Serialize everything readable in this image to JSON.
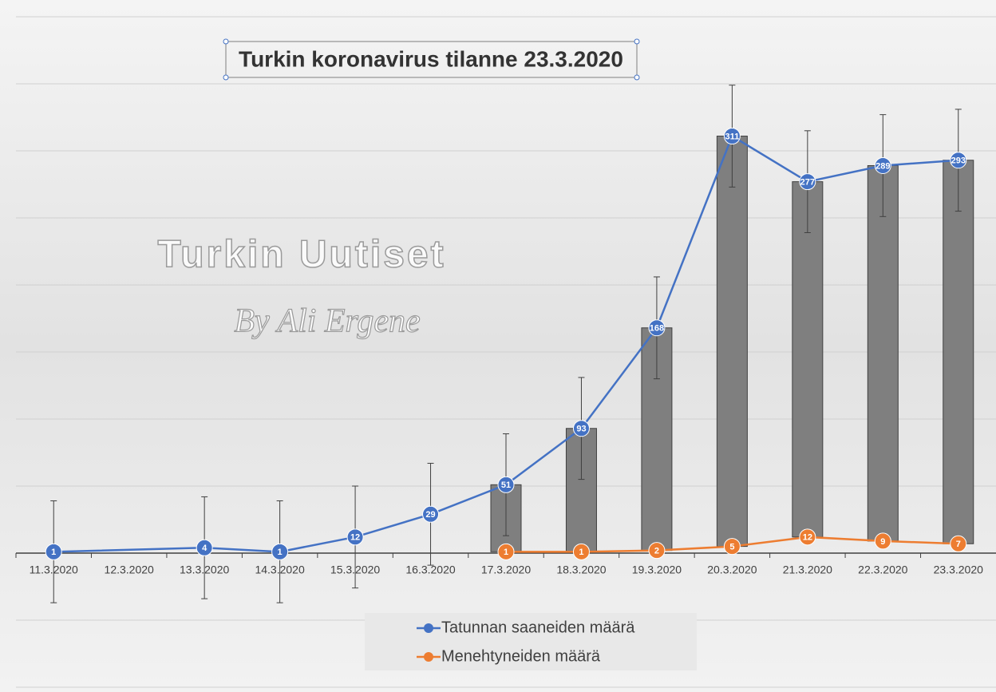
{
  "chart_data": {
    "type": "line",
    "title": "Turkin koronavirus tilanne 23.3.2020",
    "watermark": [
      "Turkin Uutiset",
      "By Ali Ergene"
    ],
    "categories": [
      "11.3.2020",
      "12.3.2020",
      "13.3.2020",
      "14.3.2020",
      "15.3.2020",
      "16.3.2020",
      "17.3.2020",
      "18.3.2020",
      "19.3.2020",
      "20.3.2020",
      "21.3.2020",
      "22.3.2020",
      "23.3.2020"
    ],
    "series": [
      {
        "name": "Tatunnan saaneiden määrä",
        "color": "#4472c4",
        "values": [
          1,
          null,
          4,
          1,
          12,
          29,
          51,
          93,
          168,
          311,
          277,
          289,
          293
        ],
        "error": 38
      },
      {
        "name": "Menehtyneiden määrä",
        "color": "#ed7d31",
        "values": [
          null,
          null,
          null,
          null,
          null,
          null,
          1,
          1,
          2,
          5,
          12,
          9,
          7
        ]
      }
    ],
    "up_down_bars": true,
    "up_down_color": "#7f7f7f",
    "connect_nulls": true,
    "ylim": [
      -100,
      400
    ],
    "yticks": [
      -100,
      -50,
      0,
      50,
      100,
      150,
      200,
      250,
      300,
      350,
      400
    ],
    "grid": true,
    "legend": "bottom"
  }
}
